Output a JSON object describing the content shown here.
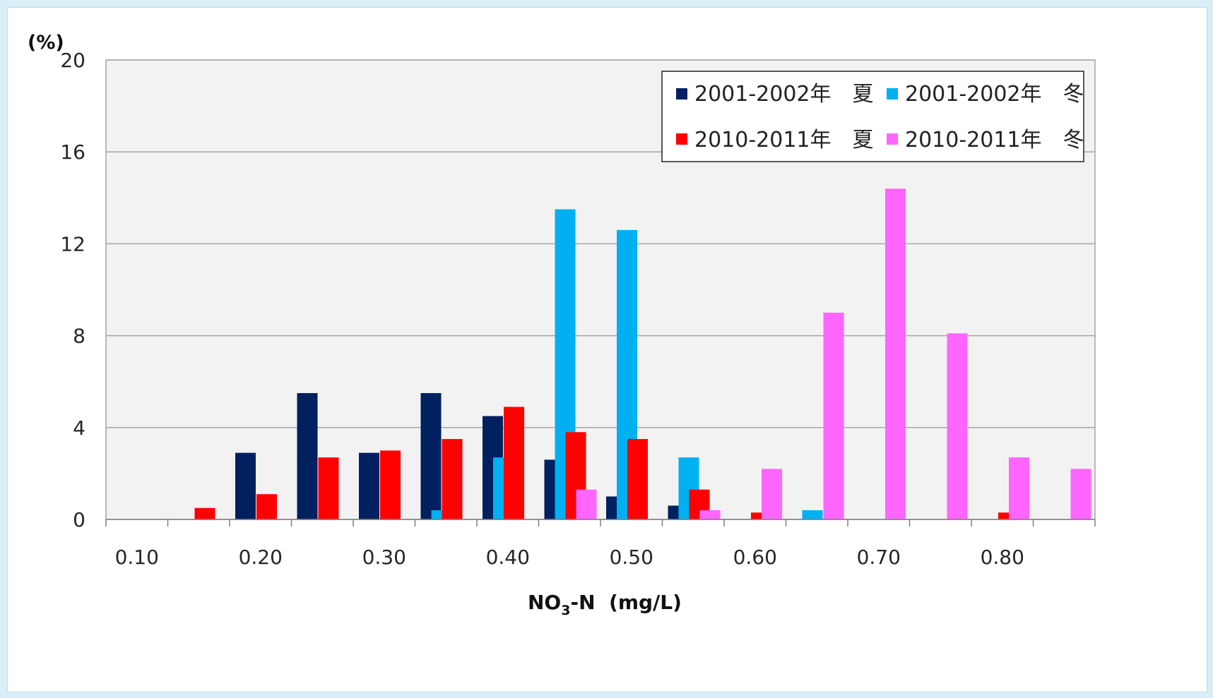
{
  "chart_data": {
    "type": "bar",
    "title": "",
    "ylabel_unit": "(%)",
    "xlabel": {
      "prefix": "NO",
      "subscript": "3",
      "suffix": "-N  (mg/L)"
    },
    "ylim": [
      0,
      20
    ],
    "yticks": [
      0,
      4,
      8,
      12,
      16,
      20
    ],
    "xtick_labels": [
      "0.10",
      "0.20",
      "0.30",
      "0.40",
      "0.50",
      "0.60",
      "0.70",
      "0.80"
    ],
    "grid": true,
    "legend_position": "top-right",
    "categories": [
      "0.10",
      "0.15",
      "0.20",
      "0.25",
      "0.30",
      "0.35",
      "0.40",
      "0.45",
      "0.50",
      "0.55",
      "0.60",
      "0.65",
      "0.70",
      "0.75",
      "0.80",
      "0.85"
    ],
    "series": [
      {
        "name": "2001-2002年　夏",
        "color": "#002060",
        "values": [
          0,
          0,
          2.9,
          5.5,
          2.9,
          5.5,
          4.5,
          2.6,
          1.0,
          0.6,
          0,
          0,
          0,
          0,
          0,
          0
        ]
      },
      {
        "name": "2001-2002年　冬",
        "color": "#00b0f0",
        "values": [
          0,
          0,
          0,
          0,
          0,
          0.4,
          2.7,
          13.5,
          12.6,
          2.7,
          0,
          0.4,
          0,
          0,
          0,
          0
        ]
      },
      {
        "name": "2010-2011年　夏",
        "color": "#ff0000",
        "values": [
          0,
          0.5,
          1.1,
          2.7,
          3.0,
          3.5,
          4.9,
          3.8,
          3.5,
          1.3,
          0.3,
          0,
          0,
          0,
          0.3,
          0
        ]
      },
      {
        "name": "2010-2011年　冬",
        "color": "#ff66ff",
        "values": [
          0,
          0,
          0,
          0,
          0,
          0,
          0,
          1.3,
          0,
          0.4,
          2.2,
          9.0,
          14.4,
          8.1,
          2.7,
          2.2
        ]
      }
    ]
  }
}
